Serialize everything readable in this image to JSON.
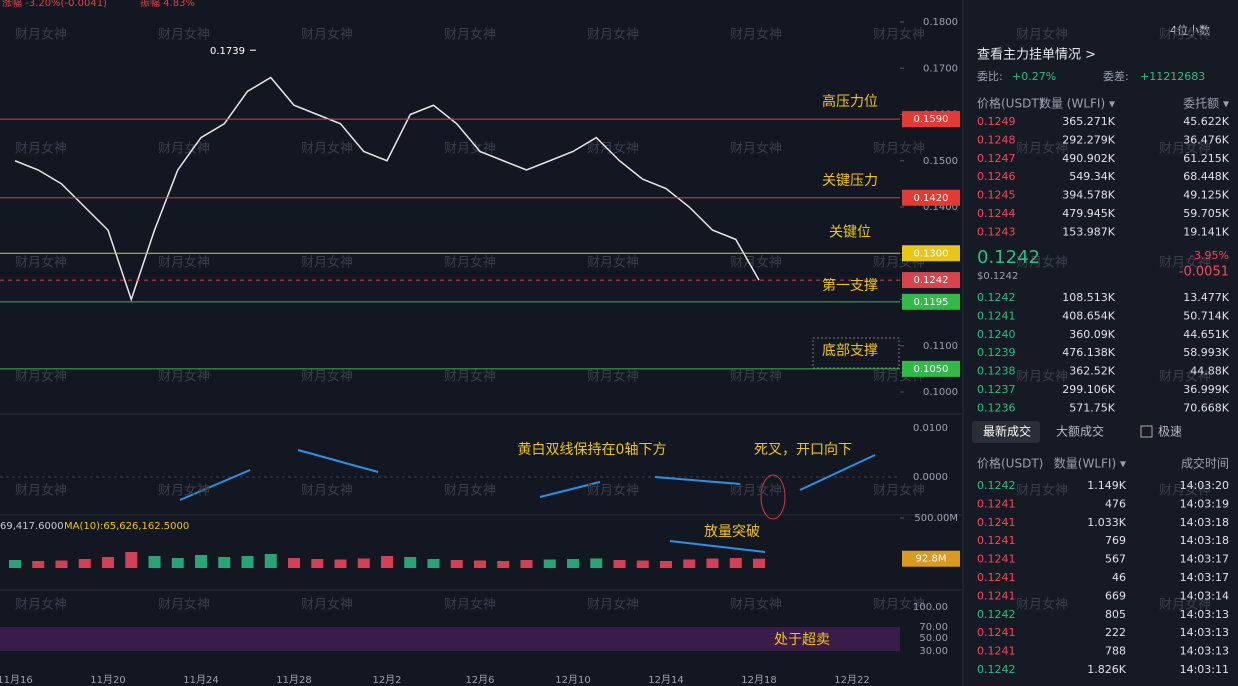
{
  "header": {
    "change": "涨幅 -3.20%(-0.0041)",
    "amplitude": "振幅 4.83%",
    "decimals": "4位小数"
  },
  "watermark": "财月女神",
  "price_chart": {
    "type": "line",
    "color": "#e8e8e8",
    "categories": [
      "11月16",
      null,
      null,
      null,
      "11月20",
      null,
      null,
      null,
      "11月24",
      null,
      null,
      null,
      "11月28",
      null,
      null,
      null,
      "12月2",
      null,
      null,
      null,
      "12月6",
      null,
      null,
      null,
      "12月10",
      null,
      null,
      null,
      "12月14",
      null,
      null,
      null,
      "12月18",
      null,
      null,
      null,
      "12月22"
    ],
    "values": [
      0.15,
      0.148,
      0.145,
      0.14,
      0.135,
      0.12,
      0.135,
      0.148,
      0.155,
      0.158,
      0.165,
      0.168,
      0.162,
      0.16,
      0.158,
      0.152,
      0.15,
      0.16,
      0.162,
      0.158,
      0.152,
      0.15,
      0.148,
      0.15,
      0.152,
      0.155,
      0.15,
      0.146,
      0.144,
      0.14,
      0.135,
      0.133,
      0.1242,
      null,
      null,
      null,
      null
    ],
    "ylim": [
      0.1,
      0.18
    ],
    "yticks": [
      {
        "value": 0.18,
        "label": "0.1800"
      },
      {
        "value": 0.17,
        "label": "0.1700"
      },
      {
        "value": 0.16,
        "label": "0.1600"
      },
      {
        "value": 0.15,
        "label": "0.1500"
      },
      {
        "value": 0.14,
        "label": "0.1400"
      },
      {
        "value": 0.13,
        "label": "0.1300"
      },
      {
        "value": 0.12,
        "label": "0.1200"
      },
      {
        "value": 0.11,
        "label": "0.1100"
      },
      {
        "value": 0.1,
        "label": "0.1000"
      }
    ],
    "high": {
      "value": 0.1739,
      "label": "0.1739"
    },
    "levels": [
      {
        "value": 0.159,
        "label": "0.1590",
        "note": "高压力位",
        "color": "#e53935"
      },
      {
        "value": 0.142,
        "label": "0.1420",
        "note": "关键压力",
        "color": "#e53935"
      },
      {
        "value": 0.13,
        "label": "0.1300",
        "note": "关键位",
        "color": "#e6c619"
      },
      {
        "value": 0.1242,
        "label": "0.1242",
        "note": "第一支撑",
        "color": "#d9434a"
      },
      {
        "value": 0.1195,
        "label": "0.1195",
        "note": null,
        "color": "#33b84a"
      },
      {
        "value": 0.105,
        "label": "0.1050",
        "note": "底部支撑",
        "color": "#33b84a"
      }
    ]
  },
  "macd": {
    "ticks": [
      "0.0100",
      "0.0000"
    ],
    "notes": [
      "黄白双线保持在0轴下方",
      "死叉，开口向下"
    ]
  },
  "volume": {
    "left": "69,417.6000",
    "ma": "MA(10):65,626,162.5000",
    "ylim": [
      0,
      500
    ],
    "top": {
      "value": 500,
      "label": "500.00M"
    },
    "current": {
      "value": 92.8,
      "label": "92.8M"
    },
    "note": "放量突破",
    "values": [
      80,
      70,
      75,
      90,
      110,
      160,
      120,
      100,
      130,
      110,
      120,
      140,
      100,
      90,
      85,
      95,
      120,
      110,
      90,
      80,
      75,
      70,
      80,
      85,
      90,
      95,
      80,
      75,
      70,
      85,
      95,
      100,
      92.8,
      null,
      null,
      null,
      null
    ]
  },
  "rsi": {
    "ticks": [
      "100.00",
      "70.00",
      "50.00",
      "30.00"
    ],
    "note": "处于超卖"
  },
  "orderbook": {
    "link": "查看主力挂单情况 >",
    "ratio_label": "委比:",
    "ratio": "+0.27%",
    "diff_label": "委差:",
    "diff": "+11212683",
    "columns": [
      "价格(USDT)",
      "数量 (WLFI) ▾",
      "委托额 ▾"
    ],
    "asks": [
      [
        "0.1249",
        "365.271K",
        "45.622K"
      ],
      [
        "0.1248",
        "292.279K",
        "36.476K"
      ],
      [
        "0.1247",
        "490.902K",
        "61.215K"
      ],
      [
        "0.1246",
        "549.34K",
        "68.448K"
      ],
      [
        "0.1245",
        "394.578K",
        "49.125K"
      ],
      [
        "0.1244",
        "479.945K",
        "59.705K"
      ],
      [
        "0.1243",
        "153.987K",
        "19.141K"
      ]
    ],
    "last": "0.1242",
    "last_usd": "$0.1242",
    "pct": "-3.95%",
    "change": "-0.0051",
    "bids": [
      [
        "0.1242",
        "108.513K",
        "13.477K"
      ],
      [
        "0.1241",
        "408.654K",
        "50.714K"
      ],
      [
        "0.1240",
        "360.09K",
        "44.651K"
      ],
      [
        "0.1239",
        "476.138K",
        "58.993K"
      ],
      [
        "0.1238",
        "362.52K",
        "44.88K"
      ],
      [
        "0.1237",
        "299.106K",
        "36.999K"
      ],
      [
        "0.1236",
        "571.75K",
        "70.668K"
      ]
    ]
  },
  "trades": {
    "tabs": [
      "最新成交",
      "大额成交",
      "极速"
    ],
    "columns": [
      "价格(USDT)",
      "数量(WLFI) ▾",
      "成交时间"
    ],
    "rows": [
      {
        "price": "0.1242",
        "qty": "1.149K",
        "time": "14:03:20",
        "color": "#2ebd85"
      },
      {
        "price": "0.1241",
        "qty": "476",
        "time": "14:03:19",
        "color": "#f6465d"
      },
      {
        "price": "0.1241",
        "qty": "1.033K",
        "time": "14:03:18",
        "color": "#f6465d"
      },
      {
        "price": "0.1241",
        "qty": "769",
        "time": "14:03:18",
        "color": "#f6465d"
      },
      {
        "price": "0.1241",
        "qty": "567",
        "time": "14:03:17",
        "color": "#f6465d"
      },
      {
        "price": "0.1241",
        "qty": "46",
        "time": "14:03:17",
        "color": "#f6465d"
      },
      {
        "price": "0.1241",
        "qty": "669",
        "time": "14:03:14",
        "color": "#f6465d"
      },
      {
        "price": "0.1242",
        "qty": "805",
        "time": "14:03:13",
        "color": "#2ebd85"
      },
      {
        "price": "0.1241",
        "qty": "222",
        "time": "14:03:13",
        "color": "#f6465d"
      },
      {
        "price": "0.1241",
        "qty": "788",
        "time": "14:03:13",
        "color": "#f6465d"
      },
      {
        "price": "0.1242",
        "qty": "1.826K",
        "time": "14:03:11",
        "color": "#2ebd85"
      }
    ]
  }
}
